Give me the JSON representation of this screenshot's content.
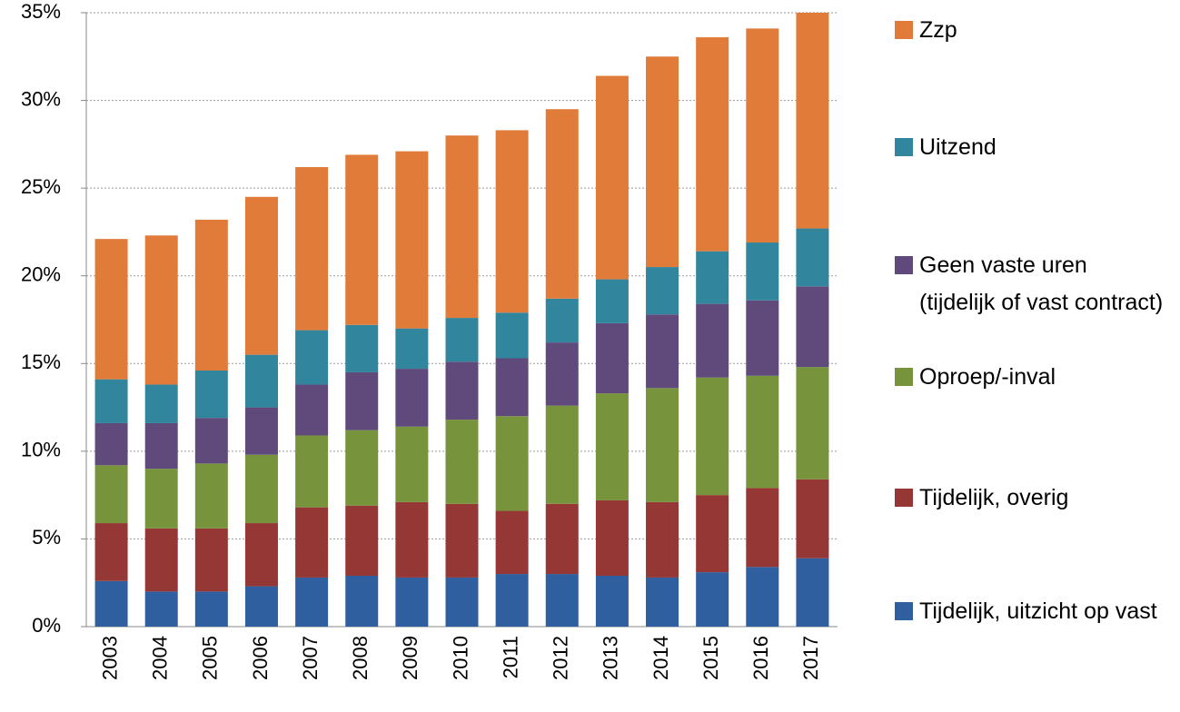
{
  "chart_data": {
    "type": "stacked-bar",
    "categories": [
      "2003",
      "2004",
      "2005",
      "2006",
      "2007",
      "2008",
      "2009",
      "2010",
      "2011",
      "2012",
      "2013",
      "2014",
      "2015",
      "2016",
      "2017"
    ],
    "series": [
      {
        "name": "Tijdelijk, uitzicht op vast",
        "color": "#2f5f9e",
        "values": [
          2.6,
          2.0,
          2.0,
          2.3,
          2.8,
          2.9,
          2.8,
          2.8,
          3.0,
          3.0,
          2.9,
          2.8,
          3.1,
          3.4,
          3.9
        ]
      },
      {
        "name": "Tijdelijk, overig",
        "color": "#953735",
        "values": [
          3.3,
          3.6,
          3.6,
          3.6,
          4.0,
          4.0,
          4.3,
          4.2,
          3.6,
          4.0,
          4.3,
          4.3,
          4.4,
          4.5,
          4.5
        ]
      },
      {
        "name": "Oproep/-inval",
        "color": "#77933c",
        "values": [
          3.3,
          3.4,
          3.7,
          3.9,
          4.1,
          4.3,
          4.3,
          4.8,
          5.4,
          5.6,
          6.1,
          6.5,
          6.7,
          6.4,
          6.4
        ]
      },
      {
        "name": "Geen vaste uren (tijdelijk of vast contract)",
        "color": "#604a7b",
        "values": [
          2.4,
          2.6,
          2.6,
          2.7,
          2.9,
          3.3,
          3.3,
          3.3,
          3.3,
          3.6,
          4.0,
          4.2,
          4.2,
          4.3,
          4.6
        ]
      },
      {
        "name": "Uitzend",
        "color": "#31859c",
        "values": [
          2.5,
          2.2,
          2.7,
          3.0,
          3.1,
          2.7,
          2.3,
          2.5,
          2.6,
          2.5,
          2.5,
          2.7,
          3.0,
          3.3,
          3.3
        ]
      },
      {
        "name": "Zzp",
        "color": "#e07b39",
        "values": [
          8.0,
          8.5,
          8.6,
          9.0,
          9.3,
          9.7,
          10.1,
          10.4,
          10.4,
          10.8,
          11.6,
          12.0,
          12.2,
          12.2,
          12.3
        ]
      }
    ],
    "ylim": [
      0,
      35
    ],
    "yticks": [
      {
        "value": 0,
        "label": "0%"
      },
      {
        "value": 5,
        "label": "5%"
      },
      {
        "value": 10,
        "label": "10%"
      },
      {
        "value": 15,
        "label": "15%"
      },
      {
        "value": 20,
        "label": "20%"
      },
      {
        "value": 25,
        "label": "25%"
      },
      {
        "value": 30,
        "label": "30%"
      },
      {
        "value": 35,
        "label": "35%"
      }
    ],
    "grid": true,
    "legend": "right"
  }
}
